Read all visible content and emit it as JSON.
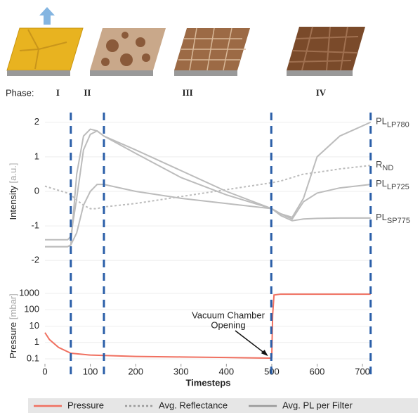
{
  "chart_data": [
    {
      "type": "line",
      "ylabel": "Intensity",
      "ylabel_unit": "[a.u.]",
      "phase_label": "Phase:",
      "phases": [
        "I",
        "II",
        "III",
        "IV"
      ],
      "phase_boundaries": [
        57,
        130,
        499,
        718
      ],
      "boundary_color": "#2a5ea8",
      "xlim": [
        0,
        720
      ],
      "ylim": [
        -2.3,
        2.3
      ],
      "yticks": [
        -2,
        -1,
        0,
        1,
        2
      ],
      "grid": true,
      "x": [
        0,
        50,
        57,
        70,
        85,
        100,
        115,
        130,
        200,
        300,
        400,
        500,
        520,
        545,
        570,
        600,
        650,
        718
      ],
      "series": [
        {
          "label": "PL",
          "label_sub": "LP780",
          "color": "#bcbcbc",
          "style": "solid",
          "values": [
            -1.6,
            -1.6,
            -1.55,
            0.5,
            1.6,
            1.8,
            1.75,
            1.6,
            1.1,
            0.4,
            -0.1,
            -0.5,
            -0.65,
            -0.75,
            -0.2,
            1.0,
            1.6,
            2.0
          ]
        },
        {
          "label": "R",
          "label_sub": "ND",
          "color": "#bcbcbc",
          "style": "dotted",
          "values": [
            0.15,
            -0.05,
            -0.1,
            -0.25,
            -0.4,
            -0.5,
            -0.5,
            -0.45,
            -0.35,
            -0.15,
            0.05,
            0.25,
            0.3,
            0.4,
            0.5,
            0.55,
            0.65,
            0.75
          ]
        },
        {
          "label": "PL",
          "label_sub": "LP725",
          "color": "#bcbcbc",
          "style": "solid",
          "values": [
            -1.6,
            -1.6,
            -1.55,
            -1.2,
            -0.4,
            0.0,
            0.2,
            0.2,
            0.0,
            -0.2,
            -0.35,
            -0.5,
            -0.65,
            -0.8,
            -0.3,
            -0.05,
            0.1,
            0.2
          ]
        },
        {
          "label": "PL",
          "label_sub": "SP775",
          "color": "#bcbcbc",
          "style": "solid",
          "values": [
            -1.4,
            -1.4,
            -1.3,
            -0.2,
            1.2,
            1.65,
            1.75,
            1.6,
            1.2,
            0.6,
            0.0,
            -0.5,
            -0.7,
            -0.85,
            -0.8,
            -0.78,
            -0.77,
            -0.77
          ]
        }
      ]
    },
    {
      "type": "line",
      "ylabel": "Pressure",
      "ylabel_unit": "[mbar]",
      "xlabel": "Timesteps",
      "yscale": "log",
      "xlim": [
        0,
        720
      ],
      "ylim": [
        0.05,
        2000
      ],
      "xticks": [
        0,
        100,
        200,
        300,
        400,
        500,
        600,
        700
      ],
      "yticks": [
        0.1,
        1,
        10,
        100,
        1000
      ],
      "grid": true,
      "annotation": {
        "text": [
          "Vacuum Chamber",
          "Opening"
        ],
        "x": 495,
        "y": 0.12
      },
      "x": [
        0,
        10,
        30,
        57,
        100,
        200,
        300,
        400,
        498,
        500,
        502,
        505,
        520,
        718
      ],
      "series": [
        {
          "name": "Pressure",
          "color": "#f07060",
          "values": [
            4,
            1.5,
            0.5,
            0.22,
            0.17,
            0.14,
            0.13,
            0.12,
            0.11,
            0.12,
            50,
            800,
            900,
            900
          ]
        }
      ]
    }
  ],
  "legend": [
    {
      "name": "Pressure",
      "color": "#f07060",
      "style": "solid"
    },
    {
      "name": "Avg. Reflectance",
      "color": "#999999",
      "style": "dotted"
    },
    {
      "name": "Avg. PL per Filter",
      "color": "#999999",
      "style": "solid"
    }
  ]
}
